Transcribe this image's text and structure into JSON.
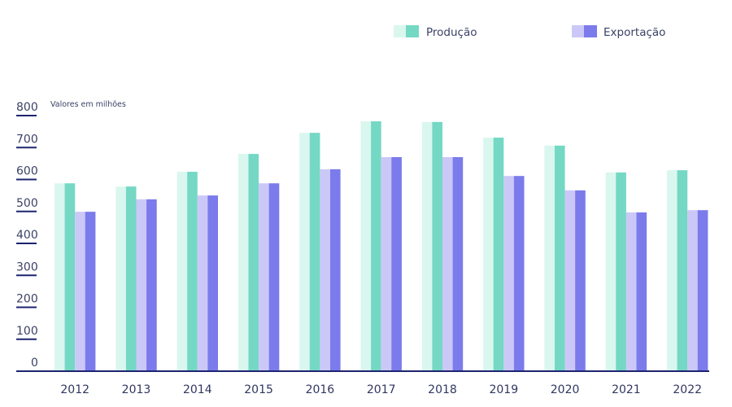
{
  "chart_data": {
    "type": "bar",
    "title": "",
    "unit_note": "Valores em milhões",
    "xlabel": "",
    "ylabel": "",
    "ylim": [
      0,
      800
    ],
    "yticks": [
      0,
      100,
      200,
      300,
      400,
      500,
      600,
      700,
      800
    ],
    "grid": false,
    "legend_position": "top-right",
    "categories": [
      "2012",
      "2013",
      "2014",
      "2015",
      "2016",
      "2017",
      "2018",
      "2019",
      "2020",
      "2021",
      "2022"
    ],
    "series": [
      {
        "name": "Produção",
        "color": "#74d8c4",
        "light_color": "#d9f7ee",
        "values": [
          588,
          578,
          624,
          680,
          746,
          782,
          780,
          731,
          706,
          622,
          629
        ]
      },
      {
        "name": "Exportação",
        "color": "#7b7bec",
        "light_color": "#cbc8f8",
        "values": [
          499,
          538,
          550,
          588,
          632,
          670,
          670,
          611,
          566,
          497,
          504
        ]
      }
    ]
  }
}
